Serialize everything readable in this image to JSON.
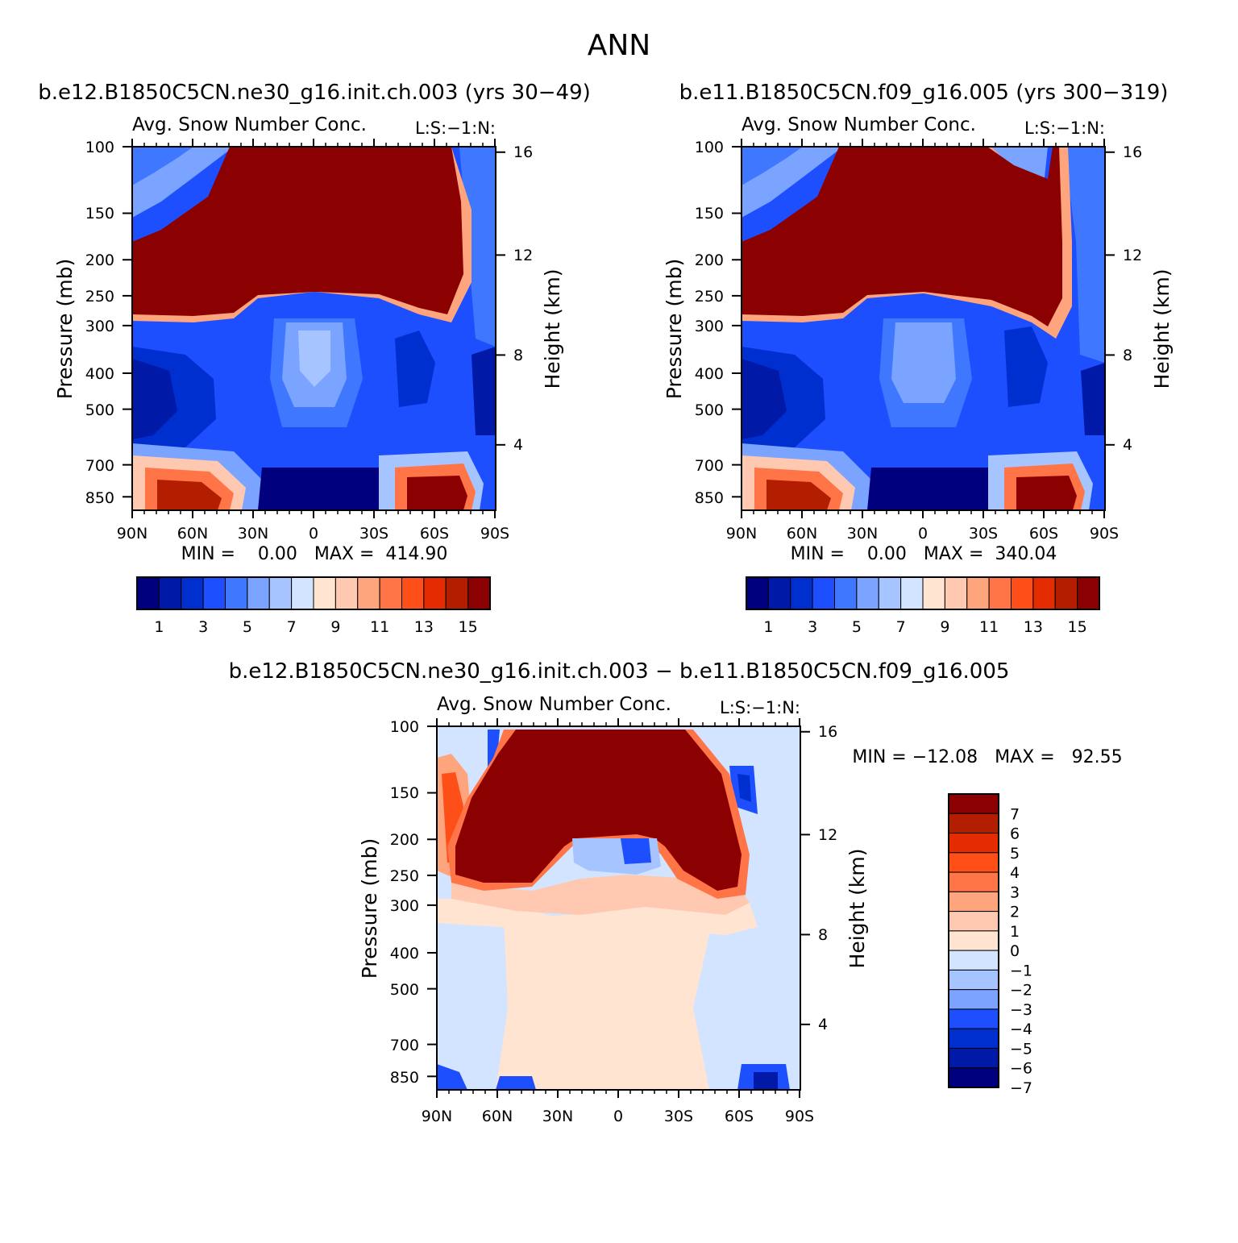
{
  "page_title": "ANN",
  "colors": {
    "seq": [
      "#00007f",
      "#0019a6",
      "#002fd0",
      "#1e4fff",
      "#3f78ff",
      "#7aa4ff",
      "#a6c4ff",
      "#d2e4ff",
      "#ffe4d2",
      "#ffc9b1",
      "#ffa57d",
      "#ff7548",
      "#ff4f18",
      "#e52c00",
      "#b31d00",
      "#8b0000"
    ],
    "diff": [
      "#00007f",
      "#0019a6",
      "#002fd0",
      "#1e4fff",
      "#7aa4ff",
      "#a6c4ff",
      "#d2e4ff",
      "#ffe4d2",
      "#ffc9b1",
      "#ffa57d",
      "#ff7548",
      "#ff4f18",
      "#e52c00",
      "#b31d00",
      "#8b0000"
    ]
  },
  "chart_data": [
    {
      "type": "heatmap",
      "title": "b.e12.B1850C5CN.ne30_g16.init.ch.003 (yrs 30−49)",
      "subtitle": "Avg. Snow Number Conc.",
      "subtitle_right": "L:S:−1:N:",
      "ylabel": "Pressure (mb)",
      "ylabel_right": "Height (km)",
      "x_ticks": [
        "90N",
        "60N",
        "30N",
        "0",
        "30S",
        "60S",
        "90S"
      ],
      "y_ticks": [
        "100",
        "150",
        "200",
        "250",
        "300",
        "400",
        "500",
        "700",
        "850"
      ],
      "y_ticks_right": [
        "16",
        "12",
        "8",
        "4"
      ],
      "stats": "MIN =    0.00   MAX =  414.90",
      "colorbar_labels": [
        "1",
        "3",
        "5",
        "7",
        "9",
        "11",
        "13",
        "15"
      ]
    },
    {
      "type": "heatmap",
      "title": "b.e11.B1850C5CN.f09_g16.005 (yrs 300−319)",
      "subtitle": "Avg. Snow Number Conc.",
      "subtitle_right": "L:S:−1:N:",
      "ylabel": "Pressure (mb)",
      "ylabel_right": "Height (km)",
      "x_ticks": [
        "90N",
        "60N",
        "30N",
        "0",
        "30S",
        "60S",
        "90S"
      ],
      "y_ticks": [
        "100",
        "150",
        "200",
        "250",
        "300",
        "400",
        "500",
        "700",
        "850"
      ],
      "y_ticks_right": [
        "16",
        "12",
        "8",
        "4"
      ],
      "stats": "MIN =    0.00   MAX =  340.04",
      "colorbar_labels": [
        "1",
        "3",
        "5",
        "7",
        "9",
        "11",
        "13",
        "15"
      ]
    },
    {
      "type": "heatmap",
      "title": "b.e12.B1850C5CN.ne30_g16.init.ch.003 − b.e11.B1850C5CN.f09_g16.005",
      "subtitle": "Avg. Snow Number Conc.",
      "subtitle_right": "L:S:−1:N:",
      "ylabel": "Pressure (mb)",
      "ylabel_right": "Height (km)",
      "x_ticks": [
        "90N",
        "60N",
        "30N",
        "0",
        "30S",
        "60S",
        "90S"
      ],
      "y_ticks": [
        "100",
        "150",
        "200",
        "250",
        "300",
        "400",
        "500",
        "700",
        "850"
      ],
      "y_ticks_right": [
        "16",
        "12",
        "8",
        "4"
      ],
      "stats": "MIN = −12.08   MAX =   92.55",
      "colorbar_labels": [
        "7",
        "6",
        "5",
        "4",
        "3",
        "2",
        "1",
        "0",
        "−1",
        "−2",
        "−3",
        "−4",
        "−5",
        "−6",
        "−7"
      ]
    }
  ]
}
